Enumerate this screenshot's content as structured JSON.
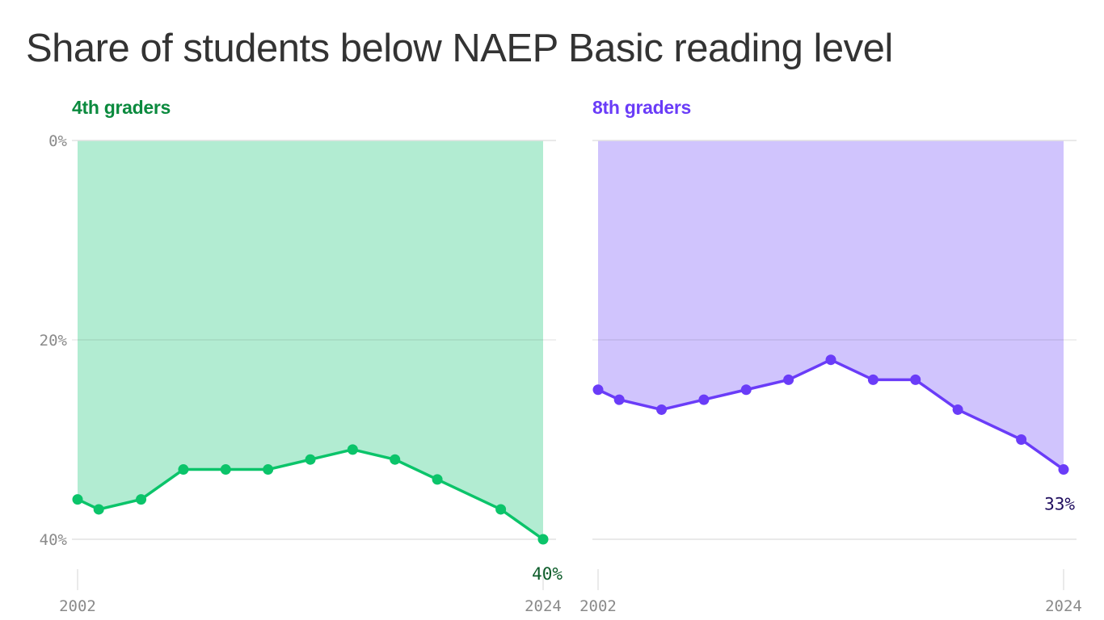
{
  "title": "Share of students below NAEP Basic reading level",
  "colors": {
    "grade4_line": "#0bc46a",
    "grade4_fill": "#b2ecd2",
    "grade4_label": "#0b8a3e",
    "grade4_end_label": "#0d5c2a",
    "grade8_line": "#6a3cf8",
    "grade8_fill": "#d0c4fd",
    "grade8_label": "#6a3cf8",
    "grade8_end_label": "#1f0d5e",
    "axis_text": "#8a8a8a",
    "grid": "#e2e2e2"
  },
  "panels": [
    {
      "label": "4th graders",
      "end_label": "40%"
    },
    {
      "label": "8th graders",
      "end_label": "33%"
    }
  ],
  "axis": {
    "y_ticks": [
      "0%",
      "20%",
      "40%"
    ],
    "x_ticks": [
      "2002",
      "2024"
    ]
  },
  "chart_data": [
    {
      "type": "area",
      "title": "4th graders",
      "x": [
        2002,
        2003,
        2005,
        2007,
        2009,
        2011,
        2013,
        2015,
        2017,
        2019,
        2022,
        2024
      ],
      "values": [
        36,
        37,
        36,
        33,
        33,
        33,
        32,
        31,
        32,
        34,
        37,
        40
      ],
      "ylabel": "Share of students below NAEP Basic reading level (%)",
      "ylim": [
        0,
        40
      ],
      "y_inverted": true,
      "y_ticks": [
        0,
        20,
        40
      ],
      "x_ticks": [
        2002,
        2024
      ],
      "end_annotation": "40%",
      "grid": true
    },
    {
      "type": "area",
      "title": "8th graders",
      "x": [
        2002,
        2003,
        2005,
        2007,
        2009,
        2011,
        2013,
        2015,
        2017,
        2019,
        2022,
        2024
      ],
      "values": [
        25,
        26,
        27,
        26,
        25,
        24,
        22,
        24,
        24,
        27,
        30,
        33
      ],
      "ylabel": "Share of students below NAEP Basic reading level (%)",
      "ylim": [
        0,
        40
      ],
      "y_inverted": true,
      "y_ticks": [
        0,
        20,
        40
      ],
      "x_ticks": [
        2002,
        2024
      ],
      "end_annotation": "33%",
      "grid": true
    }
  ]
}
